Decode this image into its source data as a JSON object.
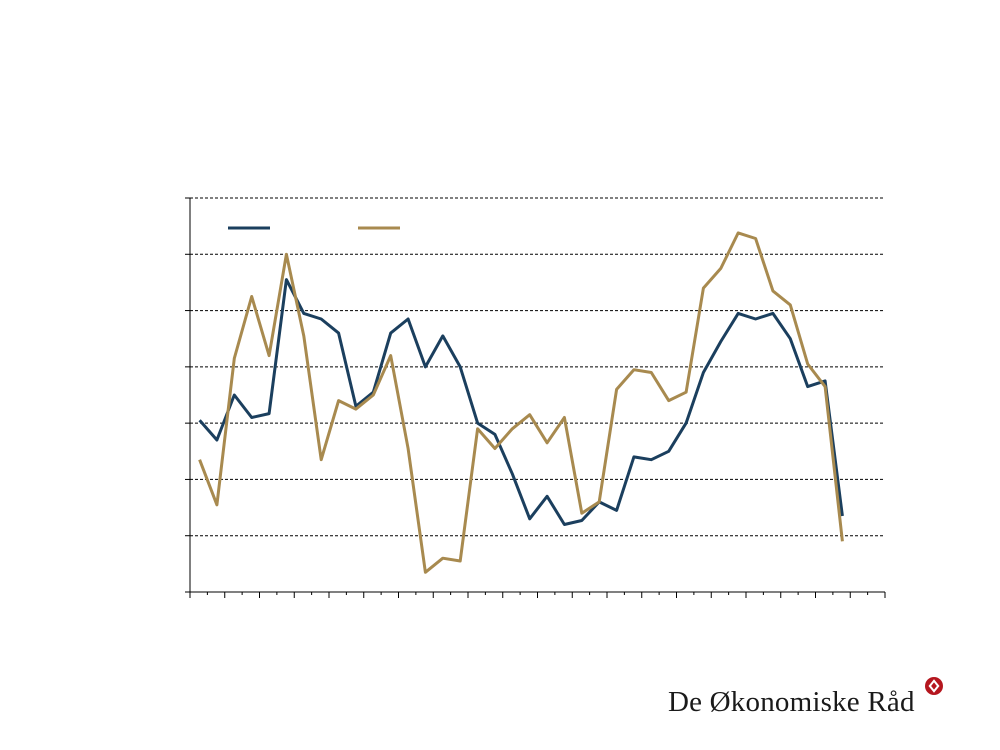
{
  "branding": {
    "organisation": "De Økonomiske Råd",
    "logo_icon": "roundel-logo-icon",
    "logo_color": "#b5161e"
  },
  "colors": {
    "series_1": "#1b3f5e",
    "series_2": "#a88a4f",
    "grid": "#000000",
    "axis": "#000000"
  },
  "chart_data": {
    "type": "line",
    "title": "",
    "xlabel": "",
    "ylabel": "",
    "ylim": [
      0,
      7
    ],
    "grid": true,
    "legend": "top-left",
    "x": [
      0,
      1,
      2,
      3,
      4,
      5,
      6,
      7,
      8,
      9,
      10,
      11,
      12,
      13,
      14,
      15,
      16,
      17,
      18,
      19,
      20,
      21,
      22,
      23,
      24,
      25,
      26,
      27,
      28,
      29,
      30,
      31,
      32,
      33,
      34,
      35,
      36,
      37
    ],
    "x_tick_count": 40,
    "series": [
      {
        "color": "#1b3f5e",
        "values": [
          3.05,
          2.7,
          3.5,
          3.1,
          3.17,
          5.55,
          4.95,
          4.85,
          4.6,
          3.3,
          3.55,
          4.6,
          4.85,
          4.0,
          4.55,
          4.0,
          3.0,
          2.8,
          2.1,
          1.3,
          1.7,
          1.2,
          1.27,
          1.6,
          1.45,
          2.4,
          2.35,
          2.5,
          3.0,
          3.9,
          4.45,
          4.95,
          4.85,
          4.95,
          4.5,
          3.65,
          3.75,
          1.35
        ]
      },
      {
        "color": "#a88a4f",
        "values": [
          2.35,
          1.55,
          4.15,
          5.25,
          4.2,
          6.0,
          4.55,
          2.35,
          3.4,
          3.25,
          3.5,
          4.2,
          2.55,
          0.35,
          0.6,
          0.55,
          2.9,
          2.55,
          2.9,
          3.15,
          2.65,
          3.1,
          1.4,
          1.6,
          3.6,
          3.95,
          3.9,
          3.4,
          3.55,
          5.4,
          5.75,
          6.38,
          6.28,
          5.35,
          5.1,
          4.05,
          3.65,
          0.9
        ]
      }
    ]
  }
}
